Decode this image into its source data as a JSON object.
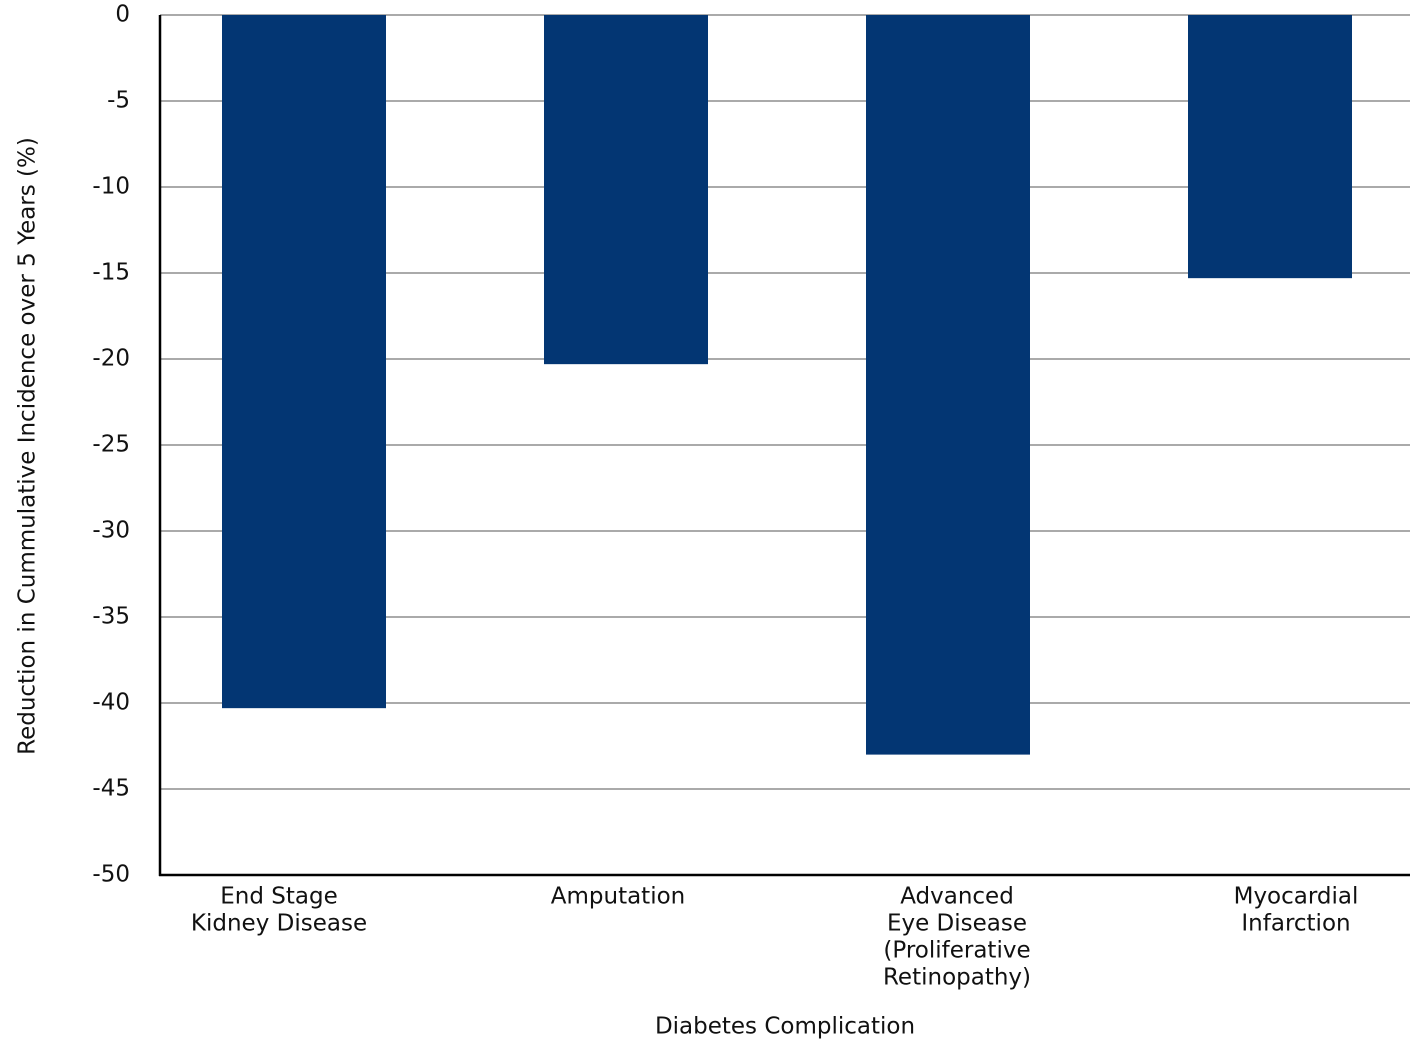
{
  "chart_data": {
    "type": "bar",
    "x_label": "Diabetes Complication",
    "y_label": "Reduction in Cummulative Incidence over 5 Years (%)",
    "categories": [
      [
        "End Stage",
        "Kidney Disease"
      ],
      [
        "Amputation"
      ],
      [
        "Advanced",
        "Eye Disease",
        "(Proliferative",
        "Retinopathy)"
      ],
      [
        "Myocardial",
        "Infarction"
      ]
    ],
    "values": [
      -40.3,
      -20.3,
      -43,
      -15.3
    ],
    "color": "#033673",
    "ylim": [
      -50,
      0
    ],
    "yticks": [
      0,
      -5,
      -10,
      -15,
      -20,
      -25,
      -30,
      -35,
      -40,
      -45,
      -50
    ],
    "grid": true
  }
}
